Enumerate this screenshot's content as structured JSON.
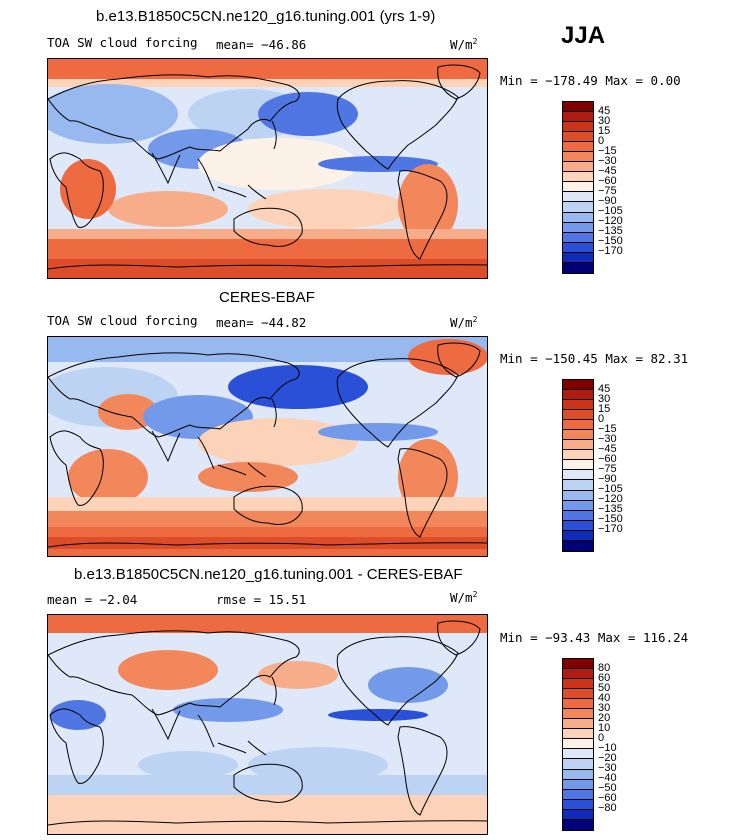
{
  "season": "JJA",
  "units_label": "W/m",
  "units_sup": "2",
  "panels": [
    {
      "title": "b.e13.B1850C5CN.ne120_g16.tuning.001 (yrs 1-9)",
      "left_label": "TOA SW cloud forcing",
      "stat_text": "mean= −46.86",
      "minmax": "Min = −178.49 Max =   0.00"
    },
    {
      "title": "CERES-EBAF",
      "left_label": "TOA SW cloud forcing",
      "stat_text": "mean= −44.82",
      "minmax": "Min = −150.45 Max =  82.31"
    },
    {
      "title": "b.e13.B1850C5CN.ne120_g16.tuning.001 - CERES-EBAF",
      "left_label": "mean =  −2.04",
      "stat_text": "rmse =  15.51",
      "minmax": "Min = −93.43 Max = 116.24"
    }
  ],
  "chart_data": [
    {
      "type": "heatmap",
      "title": "b.e13.B1850C5CN.ne120_g16.tuning.001 (yrs 1-9)",
      "subtitle": "TOA SW cloud forcing",
      "units": "W/m2",
      "mean": -46.86,
      "min": -178.49,
      "max": 0.0,
      "contour_levels": [
        45,
        30,
        15,
        0,
        -15,
        -30,
        -45,
        -60,
        -75,
        -90,
        -105,
        -120,
        -135,
        -150,
        -170
      ],
      "colorbar_labels": [
        "45",
        "30",
        "15",
        "0",
        "−15",
        "−30",
        "−45",
        "−60",
        "−75",
        "−90",
        "−105",
        "−120",
        "−135",
        "−150",
        "−170"
      ],
      "colors": [
        "#800000",
        "#b01c12",
        "#cc3319",
        "#dd4d2a",
        "#ee6a40",
        "#f3875c",
        "#f8ad8a",
        "#fcd3b8",
        "#fdf2e8",
        "#dfe8f8",
        "#bcd3f3",
        "#98b9ef",
        "#7399ea",
        "#4f76e2",
        "#2b50d8",
        "#0f2bb8",
        "#000078"
      ]
    },
    {
      "type": "heatmap",
      "title": "CERES-EBAF",
      "subtitle": "TOA SW cloud forcing",
      "units": "W/m2",
      "mean": -44.82,
      "min": -150.45,
      "max": 82.31,
      "contour_levels": [
        45,
        30,
        15,
        0,
        -15,
        -30,
        -45,
        -60,
        -75,
        -90,
        -105,
        -120,
        -135,
        -150,
        -170
      ],
      "colorbar_labels": [
        "45",
        "30",
        "15",
        "0",
        "−15",
        "−30",
        "−45",
        "−60",
        "−75",
        "−90",
        "−105",
        "−120",
        "−135",
        "−150",
        "−170"
      ],
      "colors": [
        "#800000",
        "#b01c12",
        "#cc3319",
        "#dd4d2a",
        "#ee6a40",
        "#f3875c",
        "#f8ad8a",
        "#fcd3b8",
        "#fdf2e8",
        "#dfe8f8",
        "#bcd3f3",
        "#98b9ef",
        "#7399ea",
        "#4f76e2",
        "#2b50d8",
        "#0f2bb8",
        "#000078"
      ]
    },
    {
      "type": "heatmap",
      "title": "b.e13.B1850C5CN.ne120_g16.tuning.001 - CERES-EBAF",
      "units": "W/m2",
      "mean": -2.04,
      "rmse": 15.51,
      "min": -93.43,
      "max": 116.24,
      "contour_levels": [
        80,
        60,
        50,
        40,
        30,
        20,
        10,
        0,
        -10,
        -20,
        -30,
        -40,
        -50,
        -60,
        -80
      ],
      "colorbar_labels": [
        "80",
        "60",
        "50",
        "40",
        "30",
        "20",
        "10",
        "0",
        "−10",
        "−20",
        "−30",
        "−40",
        "−50",
        "−60",
        "−80"
      ],
      "colors": [
        "#800000",
        "#b01c12",
        "#cc3319",
        "#dd4d2a",
        "#ee6a40",
        "#f3875c",
        "#f8ad8a",
        "#fcd3b8",
        "#fdf2e8",
        "#dfe8f8",
        "#bcd3f3",
        "#98b9ef",
        "#7399ea",
        "#4f76e2",
        "#2b50d8",
        "#0f2bb8",
        "#000078"
      ]
    }
  ]
}
